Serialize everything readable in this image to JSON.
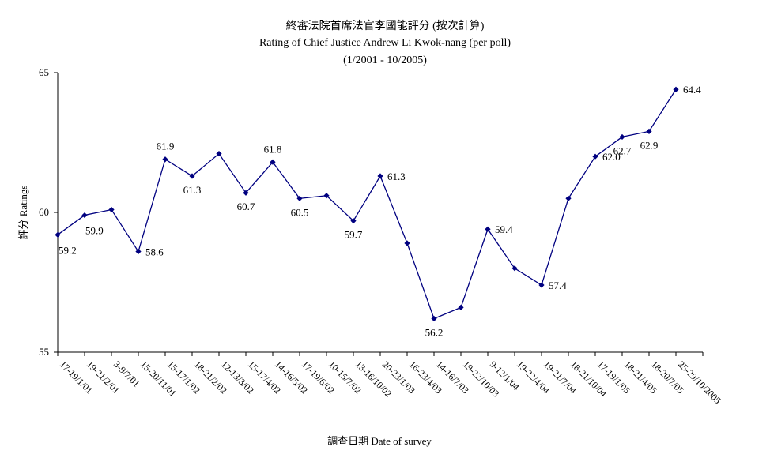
{
  "chart_data": {
    "type": "line",
    "title": "終審法院首席法官李國能評分 (按次計算)",
    "subtitle": "Rating of Chief Justice Andrew Li Kwok-nang  (per poll)",
    "period": "(1/2001 - 10/2005)",
    "xlabel": "調查日期 Date of survey",
    "ylabel": "評分 Ratings",
    "ylim": [
      55,
      65
    ],
    "yticks": [
      "55",
      "60",
      "65"
    ],
    "grid": false,
    "legend": "none",
    "line_color": "#000080",
    "categories": [
      "17-19/1/01",
      "19-21/2/01",
      "3-9/7/01",
      "15-20/11/01",
      "15-17/1/02",
      "18-21/2/02",
      "12-13/3/02",
      "15-17/4/02",
      "14-16/5/02",
      "17-19/6/02",
      "10-15/7/02",
      "13-16/10/02",
      "20-23/1/03",
      "16-23/4/03",
      "14-16/7/03",
      "19-22/10/03",
      "9-12/1/04",
      "19-22/4/04",
      "19-21/7/04",
      "18-21/10/04",
      "17-19/1/05",
      "18-21/4/05",
      "18-20/7/05",
      "25-29/10/2005"
    ],
    "values": [
      59.2,
      59.9,
      60.1,
      58.6,
      61.9,
      61.3,
      62.1,
      60.7,
      61.8,
      60.5,
      60.6,
      59.7,
      61.3,
      58.9,
      56.2,
      56.6,
      59.4,
      58.0,
      57.4,
      60.5,
      62.0,
      62.7,
      62.9,
      64.4
    ],
    "data_labels": [
      {
        "index": 0,
        "text": "59.2",
        "pos": "below-right"
      },
      {
        "index": 1,
        "text": "59.9",
        "pos": "below-right"
      },
      {
        "index": 3,
        "text": "58.6",
        "pos": "right"
      },
      {
        "index": 4,
        "text": "61.9",
        "pos": "above"
      },
      {
        "index": 5,
        "text": "61.3",
        "pos": "below"
      },
      {
        "index": 7,
        "text": "60.7",
        "pos": "below"
      },
      {
        "index": 8,
        "text": "61.8",
        "pos": "above"
      },
      {
        "index": 9,
        "text": "60.5",
        "pos": "below"
      },
      {
        "index": 11,
        "text": "59.7",
        "pos": "below"
      },
      {
        "index": 12,
        "text": "61.3",
        "pos": "right"
      },
      {
        "index": 14,
        "text": "56.2",
        "pos": "below"
      },
      {
        "index": 16,
        "text": "59.4",
        "pos": "right"
      },
      {
        "index": 18,
        "text": "57.4",
        "pos": "right"
      },
      {
        "index": 20,
        "text": "62.0",
        "pos": "right"
      },
      {
        "index": 21,
        "text": "62.7",
        "pos": "below"
      },
      {
        "index": 22,
        "text": "62.9",
        "pos": "below"
      },
      {
        "index": 23,
        "text": "64.4",
        "pos": "right"
      }
    ]
  }
}
